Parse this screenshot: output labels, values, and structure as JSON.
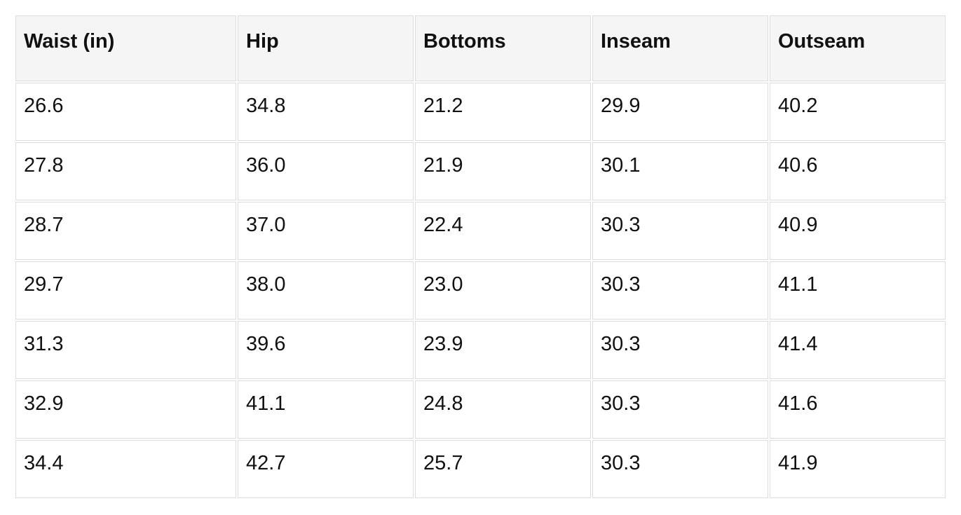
{
  "chart_data": {
    "type": "table",
    "columns": [
      "Waist (in)",
      "Hip",
      "Bottoms",
      "Inseam",
      "Outseam"
    ],
    "rows": [
      [
        "26.6",
        "34.8",
        "21.2",
        "29.9",
        "40.2"
      ],
      [
        "27.8",
        "36.0",
        "21.9",
        "30.1",
        "40.6"
      ],
      [
        "28.7",
        "37.0",
        "22.4",
        "30.3",
        "40.9"
      ],
      [
        "29.7",
        "38.0",
        "23.0",
        "30.3",
        "41.1"
      ],
      [
        "31.3",
        "39.6",
        "23.9",
        "30.3",
        "41.4"
      ],
      [
        "32.9",
        "41.1",
        "24.8",
        "30.3",
        "41.6"
      ],
      [
        "34.4",
        "42.7",
        "25.7",
        "30.3",
        "41.9"
      ]
    ],
    "layout": {
      "header_background": "#f5f5f5",
      "row_background": "#ffffff",
      "border_color": "#dddddd",
      "text_color": "#111111"
    }
  }
}
